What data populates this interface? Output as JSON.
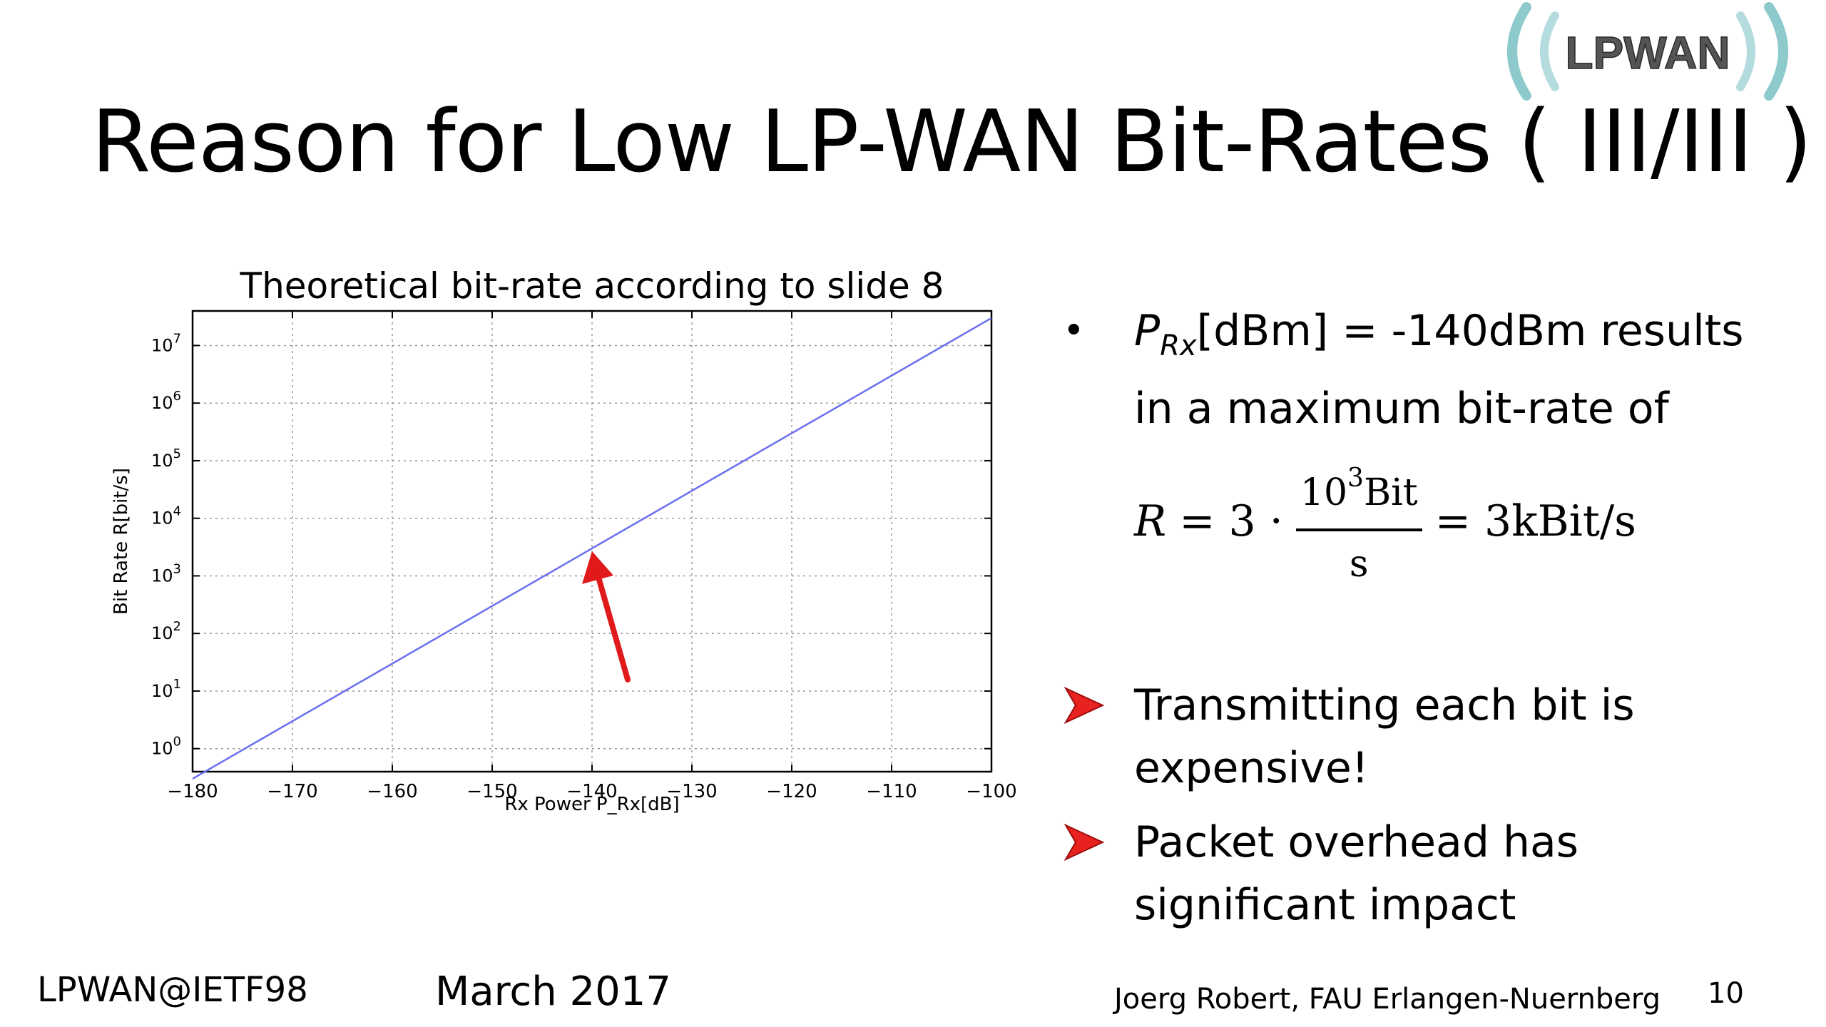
{
  "slide": {
    "title": "Reason for Low LP-WAN Bit-Rates ( III/III )",
    "logo_text": "LPWAN"
  },
  "chart_data": {
    "type": "line",
    "title": "Theoretical bit-rate according to slide 8",
    "xlabel": "Rx Power P_Rx[dB]",
    "ylabel": "Bit Rate R[bit/s]",
    "xlim": [
      -180,
      -100
    ],
    "ylim_log10": [
      -0.4,
      7.6
    ],
    "yscale": "log",
    "grid": true,
    "x_ticks": [
      -180,
      -170,
      -160,
      -150,
      -140,
      -130,
      -120,
      -110,
      -100
    ],
    "x_tick_labels": [
      "−180",
      "−170",
      "−160",
      "−150",
      "−140",
      "−130",
      "−120",
      "−110",
      "−100"
    ],
    "y_tick_exponents": [
      0,
      1,
      2,
      3,
      4,
      5,
      6,
      7
    ],
    "y_tick_base": "10",
    "series": [
      {
        "x": [
          -180,
          -100
        ],
        "y": [
          0.3,
          30000000
        ],
        "color": "#6a6ef0"
      }
    ],
    "annotation": {
      "type": "arrow",
      "x": -140,
      "y": 3000,
      "color": "#e01a1a"
    }
  },
  "bullets": {
    "b1_symbol_p": "P",
    "b1_symbol_sub": "Rx",
    "b1_text_a": "[dBm] = -140dBm results",
    "b1_text_b": "in a maximum bit-rate of",
    "f_r": "R",
    "f_eq1": "= 3 ·",
    "f_num_base": "10",
    "f_num_exp": "3",
    "f_num_unit": "Bit",
    "f_den": "s",
    "f_eq2": "= 3kBit/s",
    "arrow_items": [
      {
        "line1": "Transmitting each bit is",
        "line2": "expensive!"
      },
      {
        "line1": "Packet overhead has",
        "line2": "significant impact"
      }
    ],
    "marker_color": "#e8231f"
  },
  "footer": {
    "left": "LPWAN@IETF98",
    "date": "March 2017",
    "author": "Joerg Robert, FAU Erlangen-Nuernberg",
    "page": "10"
  }
}
